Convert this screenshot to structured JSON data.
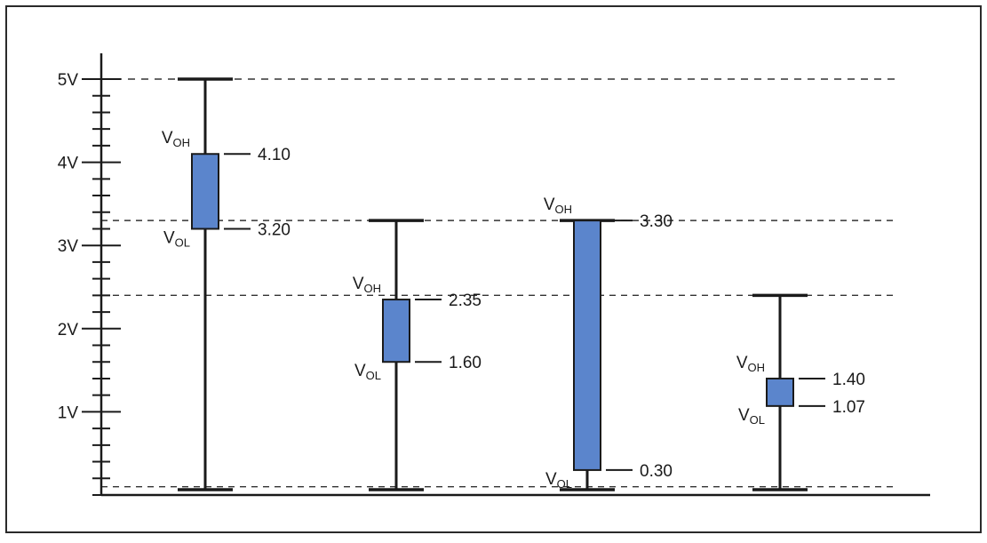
{
  "chart_data": {
    "type": "range-bar",
    "y_unit": "V",
    "ylim": [
      0,
      5
    ],
    "y_ticks": [
      {
        "value": 1,
        "label": "1V"
      },
      {
        "value": 2,
        "label": "2V"
      },
      {
        "value": 3,
        "label": "3V"
      },
      {
        "value": 4,
        "label": "4V"
      },
      {
        "value": 5,
        "label": "5V"
      }
    ],
    "minor_tick_step": 0.2,
    "dashed_levels": [
      5,
      3.3,
      2.4,
      0.1
    ],
    "colors": {
      "box_fill": "#5b85cc",
      "box_stroke": "#1a1a1a",
      "line": "#1a1a1a"
    },
    "columns": [
      {
        "supply_top": 5.0,
        "voh": 4.1,
        "vol": 3.2,
        "voh_text": "4.10",
        "vol_text": "3.20",
        "voh_label": "V",
        "voh_sub": "OH",
        "vol_label": "V",
        "vol_sub": "OL"
      },
      {
        "supply_top": 3.3,
        "voh": 2.35,
        "vol": 1.6,
        "voh_text": "2.35",
        "vol_text": "1.60",
        "voh_label": "V",
        "voh_sub": "OH",
        "vol_label": "V",
        "vol_sub": "OL"
      },
      {
        "supply_top": 3.3,
        "voh": 3.3,
        "vol": 0.3,
        "voh_text": "3.30",
        "vol_text": "0.30",
        "voh_label": "V",
        "voh_sub": "OH",
        "vol_label": "V",
        "vol_sub": "OL"
      },
      {
        "supply_top": 2.4,
        "voh": 1.4,
        "vol": 1.07,
        "voh_text": "1.40",
        "vol_text": "1.07",
        "voh_label": "V",
        "voh_sub": "OH",
        "vol_label": "V",
        "vol_sub": "OL"
      }
    ]
  }
}
